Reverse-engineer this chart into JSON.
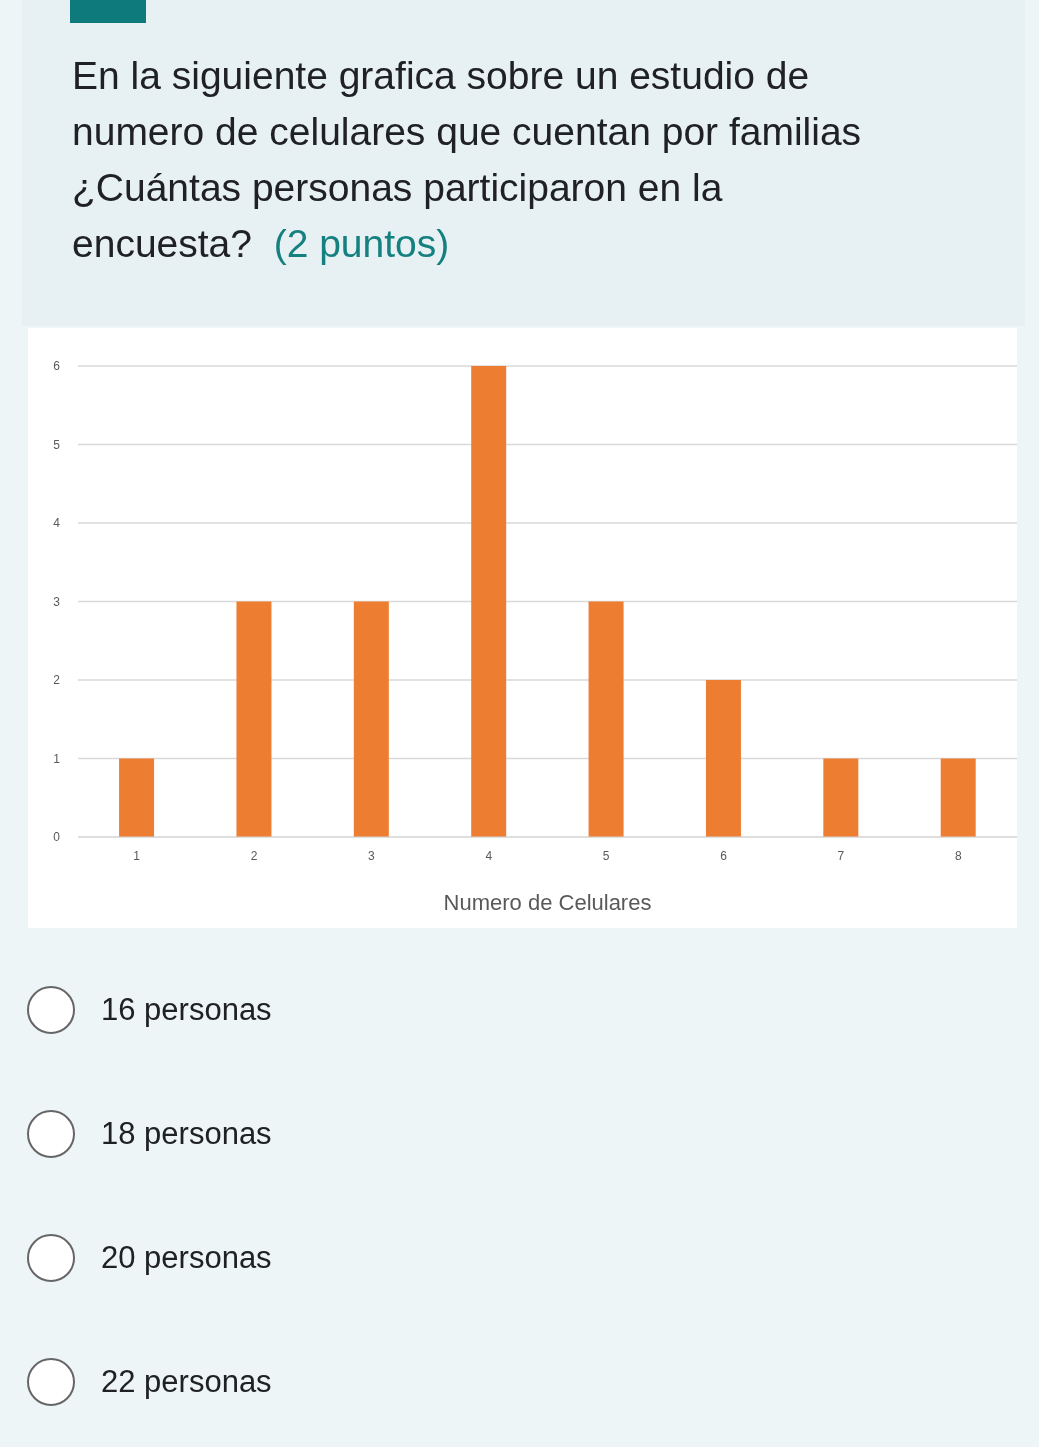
{
  "chart_data": {
    "type": "bar",
    "title": "En la siguiente grafica sobre un estudio de numero de celulares que cuentan por familias ¿Cuántas personas participaron en la encuesta?",
    "subtitle": "(2 puntos)",
    "categories": [
      "1",
      "2",
      "3",
      "4",
      "5",
      "6",
      "7",
      "8"
    ],
    "values": [
      1,
      3,
      3,
      6,
      3,
      2,
      1,
      1
    ],
    "color": "#ed7d31",
    "xlabel": "Numero de Celulares",
    "ylim": [
      0,
      6
    ],
    "yticks": [
      0,
      1,
      2,
      3,
      4,
      5,
      6
    ],
    "grid": "y",
    "annotations": [
      "16 personas",
      "18 personas",
      "20 personas",
      "22 personas"
    ]
  }
}
